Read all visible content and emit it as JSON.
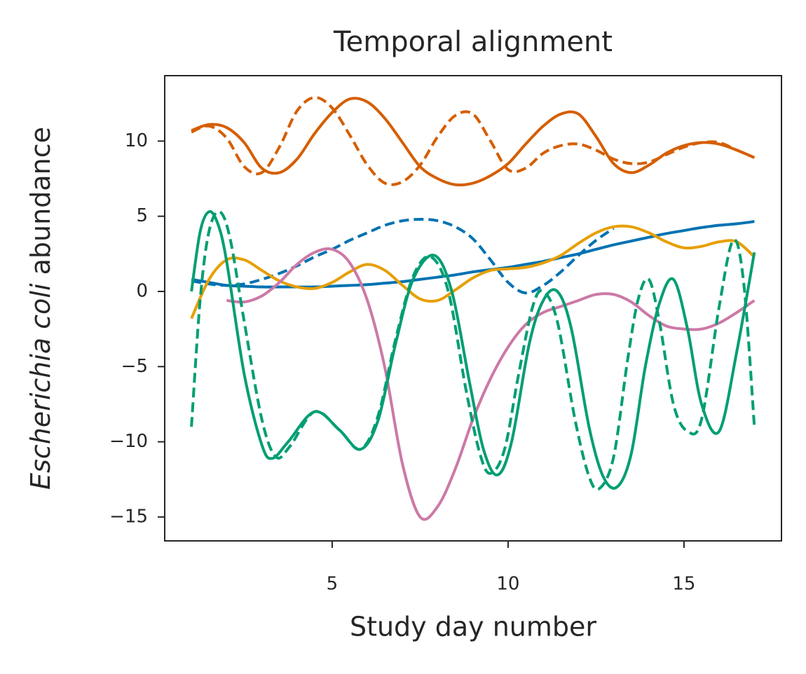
{
  "chart_data": {
    "type": "line",
    "title": "Temporal alignment",
    "xlabel": "Study day number",
    "ylabel": [
      "Escherichia coli",
      "abundance"
    ],
    "xlim": [
      0.24,
      17.77
    ],
    "ylim": [
      -16.59,
      14.35
    ],
    "xticks": [
      5,
      10,
      15
    ],
    "yticks": [
      {
        "value": -15,
        "label": "−15"
      },
      {
        "value": -10,
        "label": "−10"
      },
      {
        "value": -5,
        "label": "−5"
      },
      0,
      5,
      10
    ],
    "series": [
      {
        "color": "#d55e00",
        "dash": false,
        "x": [
          1,
          1.5,
          2,
          2.5,
          3,
          3.5,
          4,
          4.5,
          5,
          5.5,
          6,
          6.5,
          7,
          7.5,
          8,
          8.5,
          9,
          9.5,
          10,
          10.5,
          11,
          11.5,
          12,
          12.5,
          13,
          13.5,
          14,
          14.5,
          15,
          15.5,
          16,
          16.5,
          17
        ],
        "values": [
          10.7,
          11.1,
          10.9,
          9.9,
          8.2,
          7.9,
          8.8,
          10.5,
          11.9,
          12.8,
          12.6,
          11.5,
          9.9,
          8.3,
          7.5,
          7.1,
          7.2,
          7.7,
          8.5,
          9.8,
          11.0,
          11.8,
          11.8,
          10.3,
          8.5,
          7.9,
          8.4,
          9.2,
          9.7,
          9.9,
          9.8,
          9.4,
          8.9
        ]
      },
      {
        "color": "#d55e00",
        "dash": true,
        "x": [
          1,
          1.5,
          2,
          2.5,
          3,
          3.5,
          4,
          4.5,
          5,
          5.5,
          6,
          6.5,
          7,
          7.5,
          8,
          8.5,
          9,
          9.5,
          10,
          10.5,
          11,
          11.5,
          12,
          12.5,
          13,
          13.5,
          14,
          14.5,
          15,
          15.5,
          16,
          16.5,
          17
        ],
        "values": [
          10.6,
          11.0,
          10.2,
          8.3,
          7.9,
          9.6,
          12.0,
          12.9,
          12.2,
          10.4,
          8.4,
          7.2,
          7.3,
          8.4,
          10.3,
          11.7,
          11.8,
          10.0,
          8.1,
          8.2,
          9.2,
          9.7,
          9.8,
          9.4,
          8.8,
          8.5,
          8.6,
          9.1,
          9.6,
          9.9,
          9.9,
          9.4,
          8.9
        ]
      },
      {
        "color": "#0072b2",
        "dash": false,
        "x": [
          1,
          1.5,
          2,
          2.5,
          3,
          3.5,
          4,
          4.5,
          5,
          5.5,
          6,
          6.5,
          7,
          7.5,
          8,
          8.5,
          9,
          9.5,
          10,
          10.5,
          11,
          11.5,
          12,
          12.5,
          13,
          13.5,
          14,
          14.5,
          15,
          15.5,
          16,
          16.5,
          17
        ],
        "values": [
          0.8,
          0.6,
          0.4,
          0.35,
          0.3,
          0.3,
          0.3,
          0.3,
          0.35,
          0.4,
          0.45,
          0.55,
          0.65,
          0.8,
          0.95,
          1.1,
          1.3,
          1.45,
          1.6,
          1.8,
          2.0,
          2.25,
          2.5,
          2.8,
          3.1,
          3.35,
          3.6,
          3.85,
          4.05,
          4.25,
          4.4,
          4.5,
          4.65
        ]
      },
      {
        "color": "#0072b2",
        "dash": true,
        "x": [
          1,
          1.5,
          2,
          2.5,
          3,
          3.5,
          4,
          4.5,
          5,
          5.5,
          6,
          6.5,
          7,
          7.5,
          8,
          8.5,
          9,
          9.5,
          10,
          10.5,
          11,
          11.5,
          12,
          12.5,
          13
        ],
        "values": [
          0.7,
          0.5,
          0.4,
          0.5,
          0.8,
          1.2,
          1.7,
          2.3,
          2.8,
          3.4,
          3.9,
          4.4,
          4.7,
          4.8,
          4.7,
          4.3,
          3.5,
          2.1,
          0.6,
          -0.1,
          0.4,
          1.3,
          2.4,
          3.4,
          4.2
        ]
      },
      {
        "color": "#e69f00",
        "dash": false,
        "x": [
          1,
          1.5,
          2,
          2.5,
          3,
          3.5,
          4,
          4.5,
          5,
          5.5,
          6,
          6.5,
          7,
          7.5,
          8,
          8.5,
          9,
          9.5,
          10,
          10.5,
          11,
          11.5,
          12,
          12.5,
          13,
          13.5,
          14,
          14.5,
          15,
          15.5,
          16,
          16.5,
          17
        ],
        "values": [
          -1.8,
          0.8,
          2.1,
          2.1,
          1.4,
          0.7,
          0.3,
          0.2,
          0.6,
          1.3,
          1.8,
          1.4,
          0.4,
          -0.5,
          -0.6,
          0.1,
          0.9,
          1.4,
          1.5,
          1.6,
          1.9,
          2.4,
          3.2,
          3.9,
          4.3,
          4.3,
          3.9,
          3.3,
          2.9,
          3.0,
          3.3,
          3.3,
          2.3
        ]
      },
      {
        "color": "#cc79a7",
        "dash": false,
        "x": [
          2,
          2.5,
          3,
          3.5,
          4,
          4.5,
          5,
          5.5,
          6,
          6.5,
          7,
          7.5,
          8,
          8.5,
          9,
          9.5,
          10,
          10.5,
          11,
          11.5,
          12,
          12.5,
          13,
          13.5,
          14,
          14.5,
          15,
          15.5,
          16,
          16.5,
          17
        ],
        "values": [
          -0.6,
          -0.7,
          -0.3,
          0.6,
          1.8,
          2.6,
          2.8,
          1.9,
          -0.6,
          -5.1,
          -11.5,
          -15.0,
          -14.3,
          -11.8,
          -8.5,
          -5.8,
          -3.7,
          -2.2,
          -1.4,
          -1.0,
          -0.6,
          -0.2,
          -0.2,
          -0.7,
          -1.6,
          -2.3,
          -2.5,
          -2.5,
          -2.1,
          -1.4,
          -0.6
        ]
      },
      {
        "color": "#009e73",
        "dash": false,
        "x": [
          1,
          1.25,
          1.5,
          1.75,
          2,
          2.5,
          3,
          3.3,
          3.75,
          4.5,
          5.2,
          5.8,
          6.3,
          6.8,
          7.3,
          7.9,
          8.4,
          8.9,
          9.3,
          9.7,
          10.1,
          10.6,
          11.0,
          11.4,
          11.8,
          12.3,
          12.7,
          13.1,
          13.5,
          13.9,
          14.3,
          14.7,
          15.1,
          15.5,
          16,
          16.5,
          17
        ],
        "values": [
          0,
          4.0,
          5.3,
          4.5,
          2.0,
          -5.5,
          -10.2,
          -11.1,
          -10.0,
          -8.0,
          -9.2,
          -10.5,
          -8.6,
          -3.5,
          0.8,
          2.4,
          0.0,
          -6.0,
          -10.5,
          -12.2,
          -10.0,
          -3.5,
          -0.6,
          0.0,
          -2.5,
          -9.0,
          -12.3,
          -13.0,
          -10.8,
          -5.0,
          -0.8,
          0.8,
          -2.5,
          -7.5,
          -9.3,
          -4.0,
          2.6
        ]
      },
      {
        "color": "#009e73",
        "dash": true,
        "x": [
          1,
          1.25,
          1.5,
          1.8,
          2.1,
          2.5,
          3,
          3.4,
          3.8,
          4.5,
          5.2,
          5.8,
          6.3,
          6.8,
          7.3,
          7.8,
          8.3,
          8.8,
          9.2,
          9.5,
          9.9,
          10.3,
          10.7,
          11.0,
          11.4,
          11.9,
          12.3,
          12.6,
          13.0,
          13.4,
          13.7,
          14.0,
          14.3,
          14.7,
          15.1,
          15.5,
          16,
          16.4,
          16.7,
          17
        ],
        "values": [
          -9.0,
          -0.5,
          4.0,
          5.3,
          3.5,
          -2.0,
          -8.5,
          -11.0,
          -10.3,
          -8.0,
          -9.2,
          -10.5,
          -8.3,
          -3.2,
          1.0,
          2.3,
          0.0,
          -6.5,
          -10.8,
          -12.1,
          -10.5,
          -5.5,
          -1.0,
          0.0,
          -2.0,
          -8.5,
          -12.3,
          -13.1,
          -11.0,
          -4.5,
          -0.5,
          0.8,
          -2.0,
          -7.5,
          -9.3,
          -8.5,
          -1.0,
          3.4,
          0.5,
          -9.0
        ]
      }
    ]
  }
}
